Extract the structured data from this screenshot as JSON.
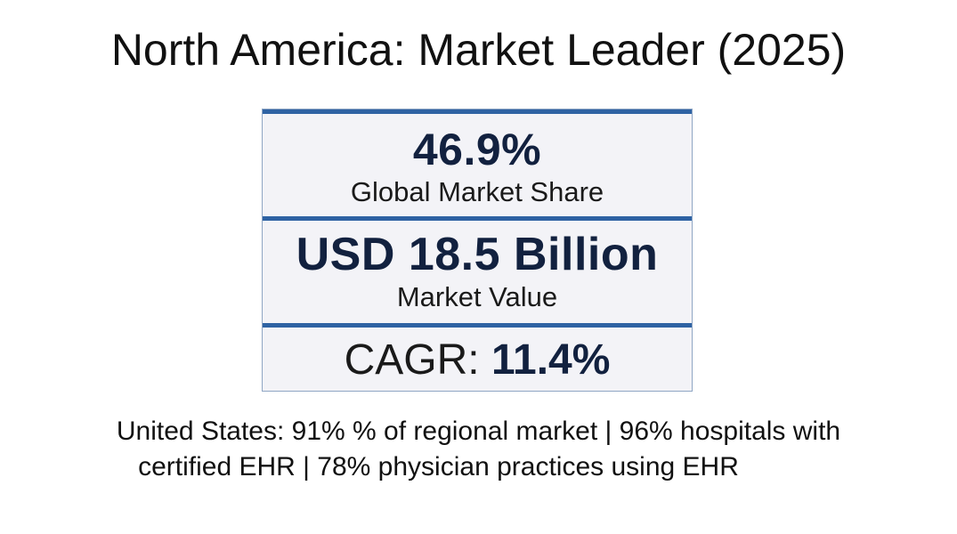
{
  "slide": {
    "title": "North America: Market Leader (2025)"
  },
  "stats": {
    "share_value": "46.9%",
    "share_label": "Global Market Share",
    "market_value": "USD 18.5 Billion",
    "market_label": "Market Value",
    "cagr_label": "CAGR: ",
    "cagr_value": "11.4%"
  },
  "footnote": {
    "line1": "United States: 91%  % of regional market | 96% hospitals with",
    "line2": "certified EHR | 78% physician practices using EHR"
  },
  "colors": {
    "accent_rule": "#2e62a3",
    "value_text": "#12213f",
    "box_background": "#f3f3f7"
  }
}
